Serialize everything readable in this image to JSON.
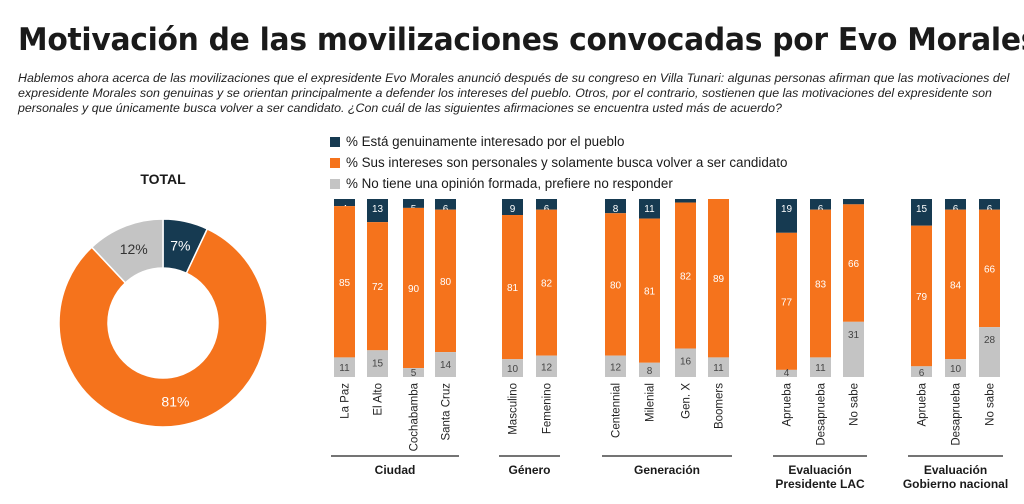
{
  "title": "Motivación de las movilizaciones convocadas por Evo Morales",
  "subtitle": "Hablemos ahora acerca de las movilizaciones que el expresidente Evo Morales anunció después de su congreso en Villa Tunari: algunas personas afirman que las motivaciones del expresidente Morales son genuinas y se orientan principalmente a defender los intereses del pueblo. Otros, por el contrario, sostienen que las motivaciones del expresidente son personales y que únicamente busca volver a ser candidato. ¿Con cuál de las siguientes afirmaciones se encuentra usted más de acuerdo?",
  "colors": {
    "genuine": "#163a51",
    "personal": "#f5731c",
    "no_opinion": "#c4c4c4"
  },
  "legend": [
    {
      "label": "% Está genuinamente interesado por el pueblo",
      "color": "#163a51"
    },
    {
      "label": "% Sus intereses son personales y solamente busca volver a ser candidato",
      "color": "#f5731c"
    },
    {
      "label": "% No tiene una opinión formada, prefiere no responder",
      "color": "#c4c4c4"
    }
  ],
  "chart_data": [
    {
      "type": "pie",
      "title": "TOTAL",
      "labels": [
        "% Está genuinamente interesado por el pueblo",
        "% Sus intereses son personales y solamente busca volver a ser candidato",
        "% No tiene una opinión formada, prefiere no responder"
      ],
      "values": [
        7,
        81,
        12
      ],
      "value_labels": [
        "7%",
        "81%",
        "12%"
      ]
    },
    {
      "type": "bar",
      "stacked": true,
      "groups": [
        {
          "label": "Ciudad",
          "categories": [
            "La Paz",
            "El Alto",
            "Cochabamba",
            "Santa Cruz"
          ]
        },
        {
          "label": "Género",
          "categories": [
            "Masculino",
            "Femenino"
          ]
        },
        {
          "label": "Generación",
          "categories": [
            "Centennial",
            "Milenial",
            "Gen. X",
            "Boomers"
          ]
        },
        {
          "label": "Evaluación Presidente LAC",
          "categories": [
            "Aprueba",
            "Desaprueba",
            "No sabe"
          ]
        },
        {
          "label": "Evaluación Gobierno nacional",
          "categories": [
            "Aprueba",
            "Desaprueba",
            "No sabe"
          ]
        }
      ],
      "series": [
        {
          "name": "% Está genuinamente interesado por el pueblo",
          "values": [
            4,
            13,
            5,
            6,
            9,
            6,
            8,
            11,
            2,
            0,
            19,
            6,
            3,
            15,
            6,
            6
          ]
        },
        {
          "name": "% Sus intereses son personales y solamente busca volver a ser candidato",
          "values": [
            85,
            72,
            90,
            80,
            81,
            82,
            80,
            81,
            82,
            89,
            77,
            83,
            66,
            79,
            84,
            66
          ]
        },
        {
          "name": "% No tiene una opinión formada, prefiere no responder",
          "values": [
            11,
            15,
            5,
            14,
            10,
            12,
            12,
            8,
            16,
            11,
            4,
            11,
            31,
            6,
            10,
            28
          ]
        }
      ],
      "data_labels": [
        [
          "4",
          "13",
          "5",
          "6",
          "9",
          "6",
          "8",
          "11",
          "2",
          "",
          "19",
          "6",
          "3",
          "15",
          "6",
          "6"
        ],
        [
          "85",
          "72",
          "90",
          "80",
          "81",
          "82",
          "80",
          "81",
          "82",
          "89",
          "77",
          "83",
          "66",
          "79",
          "84",
          "66"
        ],
        [
          "11",
          "15",
          "5",
          "14",
          "10",
          "12",
          "12",
          "8",
          "16",
          "11",
          "4",
          "11",
          "31",
          "6",
          "10",
          "28"
        ]
      ],
      "ylim": [
        0,
        100
      ]
    }
  ]
}
